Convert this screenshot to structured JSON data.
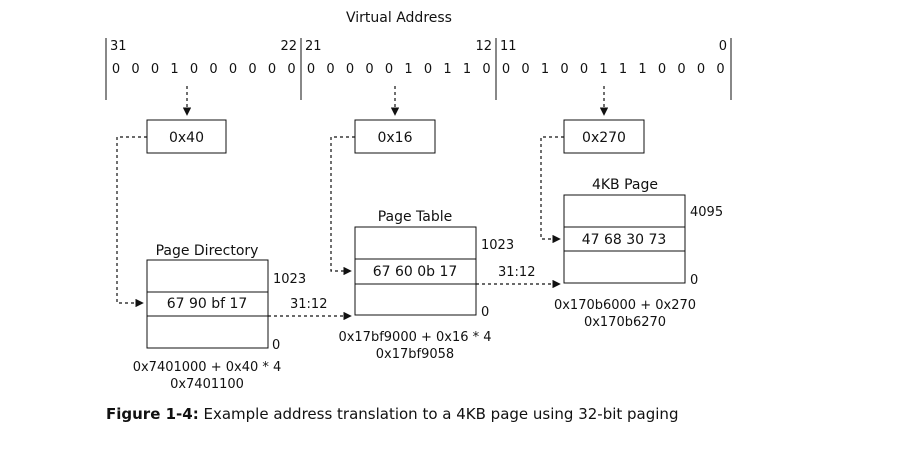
{
  "header": {
    "title": "Virtual Address"
  },
  "address": {
    "bit_labels": [
      "31",
      "22",
      "21",
      "12",
      "11",
      "0"
    ],
    "pd_bits": [
      "0",
      "0",
      "0",
      "1",
      "0",
      "0",
      "0",
      "0",
      "0",
      "0"
    ],
    "pt_bits": [
      "0",
      "0",
      "0",
      "0",
      "0",
      "1",
      "0",
      "1",
      "1",
      "0"
    ],
    "off_bits": [
      "0",
      "0",
      "1",
      "0",
      "0",
      "1",
      "1",
      "1",
      "0",
      "0",
      "0",
      "0"
    ]
  },
  "indices": {
    "pd": "0x40",
    "pt": "0x16",
    "offset": "0x270"
  },
  "page_directory": {
    "title": "Page Directory",
    "top_index": "1023",
    "bottom_index": "0",
    "entry": "67 90 bf 17",
    "bits_label": "31:12",
    "calc_line1": "0x7401000 + 0x40 * 4",
    "calc_line2": "0x7401100"
  },
  "page_table": {
    "title": "Page Table",
    "top_index": "1023",
    "bottom_index": "0",
    "entry": "67 60 0b 17",
    "bits_label": "31:12",
    "calc_line1": "0x17bf9000 + 0x16 * 4",
    "calc_line2": "0x17bf9058"
  },
  "page": {
    "title": "4KB Page",
    "top_index": "4095",
    "bottom_index": "0",
    "entry": "47 68 30 73",
    "calc_line1": "0x170b6000 + 0x270",
    "calc_line2": "0x170b6270"
  },
  "caption": {
    "label": "Figure 1-4:",
    "text": "Example address translation to a 4KB page using 32-bit paging"
  }
}
